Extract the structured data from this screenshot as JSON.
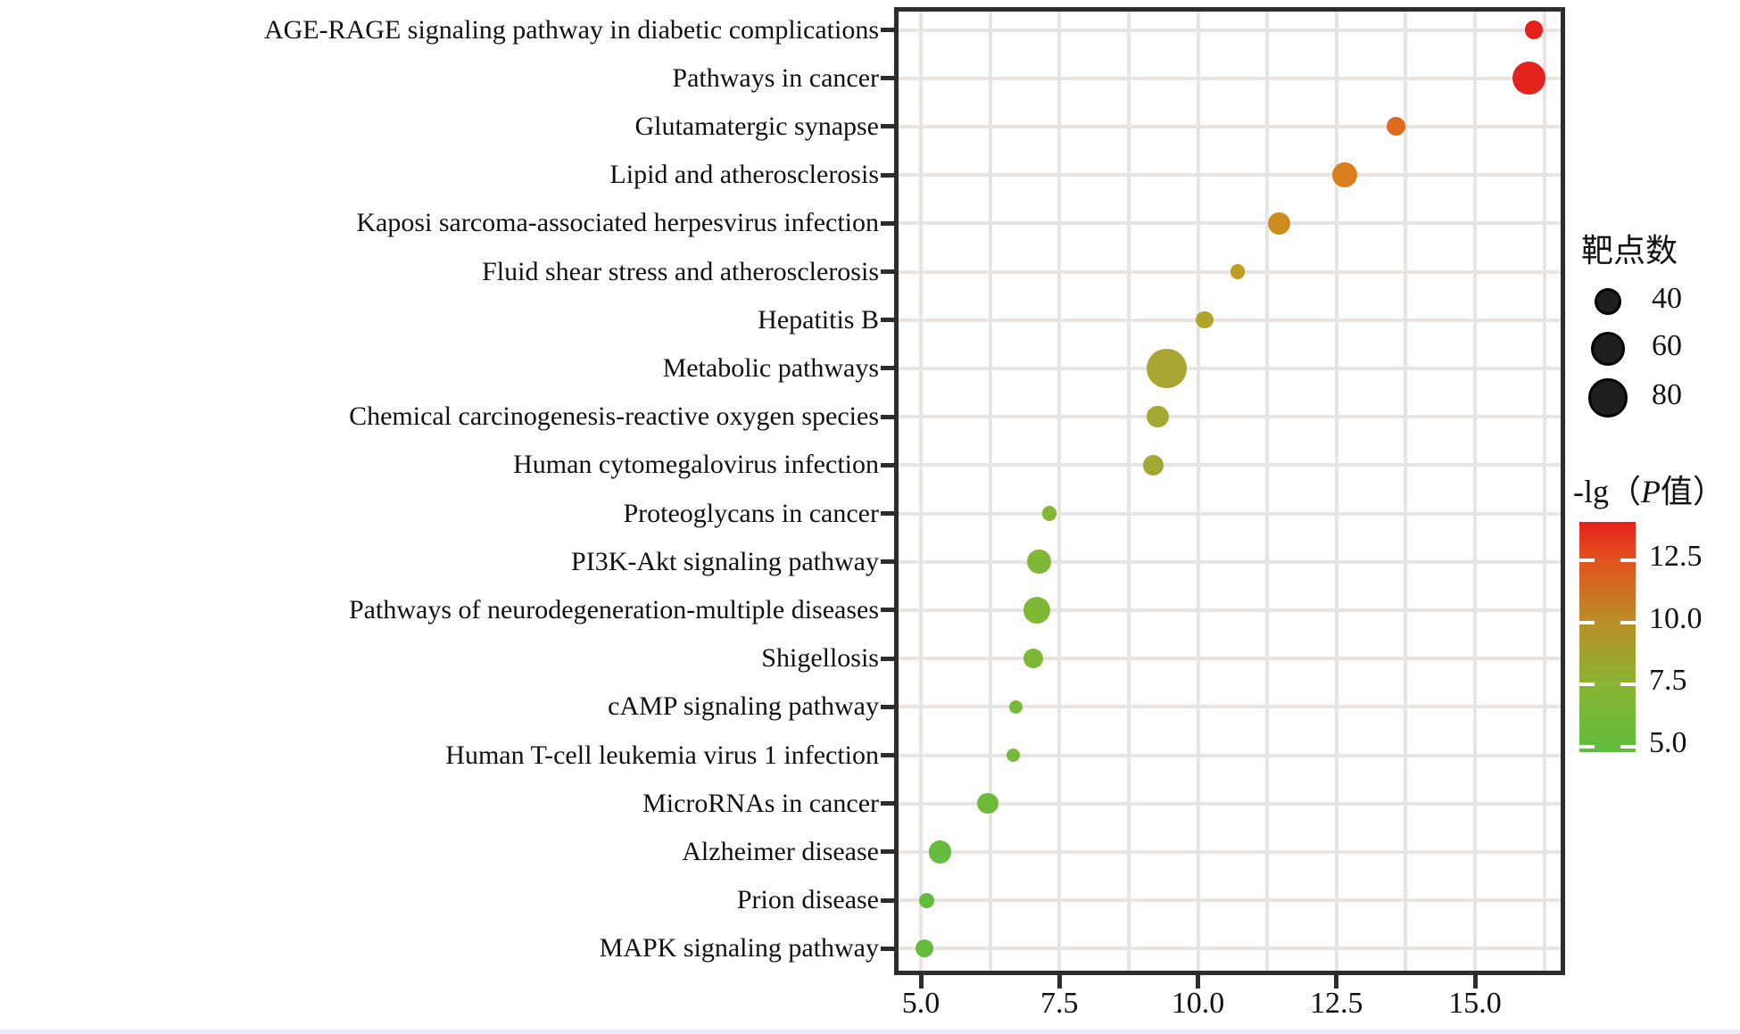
{
  "chart_data": {
    "type": "scatter",
    "title": "",
    "xlabel": "",
    "ylabel": "",
    "x_range": [
      4.5,
      16.6
    ],
    "grid": "on",
    "x_ticks": [
      {
        "v": 5.0,
        "label": "5.0"
      },
      {
        "v": 7.5,
        "label": "7.5"
      },
      {
        "v": 10.0,
        "label": "10.0"
      },
      {
        "v": 12.5,
        "label": "12.5"
      },
      {
        "v": 15.0,
        "label": "15.0"
      }
    ],
    "minor_grid_step": 1.25,
    "rows": [
      {
        "label": "AGE-RAGE signaling pathway in diabetic complications",
        "x": 16.06,
        "targets": 17,
        "color": "#e5231e"
      },
      {
        "label": "Pathways in cancer",
        "x": 15.97,
        "targets": 57,
        "color": "#e5231e"
      },
      {
        "label": "Glutamatergic synapse",
        "x": 13.58,
        "targets": 19,
        "color": "#e06a1e"
      },
      {
        "label": "Lipid and atherosclerosis",
        "x": 12.65,
        "targets": 33,
        "color": "#da7e1d"
      },
      {
        "label": "Kaposi sarcoma-associated herpesvirus infection",
        "x": 11.47,
        "targets": 27,
        "color": "#d08b1f"
      },
      {
        "label": "Fluid shear stress and atherosclerosis",
        "x": 10.72,
        "targets": 11,
        "color": "#c19b24"
      },
      {
        "label": "Hepatitis B",
        "x": 10.12,
        "targets": 16,
        "color": "#b2a42a"
      },
      {
        "label": "Metabolic pathways",
        "x": 9.44,
        "targets": 84,
        "color": "#a8a531"
      },
      {
        "label": "Chemical carcinogenesis-reactive oxygen species",
        "x": 9.27,
        "targets": 26,
        "color": "#a4a832"
      },
      {
        "label": "Human cytomegalovirus infection",
        "x": 9.19,
        "targets": 22,
        "color": "#a1a933"
      },
      {
        "label": "Proteoglycans in cancer",
        "x": 7.32,
        "targets": 12,
        "color": "#85b636"
      },
      {
        "label": "PI3K-Akt signaling pathway",
        "x": 7.13,
        "targets": 30,
        "color": "#80b737"
      },
      {
        "label": "Pathways of neurodegeneration-multiple diseases",
        "x": 7.1,
        "targets": 38,
        "color": "#7fb737"
      },
      {
        "label": "Shigellosis",
        "x": 7.03,
        "targets": 20,
        "color": "#7db838"
      },
      {
        "label": "cAMP signaling pathway",
        "x": 6.71,
        "targets": 10,
        "color": "#77b93a"
      },
      {
        "label": "Human T-cell leukemia virus 1 infection",
        "x": 6.67,
        "targets": 10,
        "color": "#76b93a"
      },
      {
        "label": "MicroRNAs in cancer",
        "x": 6.21,
        "targets": 23,
        "color": "#6ebb3c"
      },
      {
        "label": "Alzheimer disease",
        "x": 5.35,
        "targets": 27,
        "color": "#66bc3e"
      },
      {
        "label": "Prion disease",
        "x": 5.11,
        "targets": 12,
        "color": "#63bc3e"
      },
      {
        "label": "MAPK signaling pathway",
        "x": 5.06,
        "targets": 17,
        "color": "#63bc3e"
      }
    ],
    "size_legend": {
      "title": "靶点数",
      "items": [
        {
          "targets": 40,
          "label": "40"
        },
        {
          "targets": 60,
          "label": "60"
        },
        {
          "targets": 80,
          "label": "80"
        }
      ],
      "dot_color": "#1f1f1f"
    },
    "color_legend": {
      "title_prefix": "-lg（",
      "title_italic": "P",
      "title_suffix": "值）",
      "tick_labels": [
        "12.5",
        "10.0",
        "7.5",
        "5.0"
      ],
      "gradient_stops": [
        {
          "pct": 0,
          "color": "#e7211d"
        },
        {
          "pct": 16.7,
          "color": "#e1531d"
        },
        {
          "pct": 43.8,
          "color": "#b98f27"
        },
        {
          "pct": 70.5,
          "color": "#8ab434"
        },
        {
          "pct": 97.7,
          "color": "#62bc3d"
        },
        {
          "pct": 100,
          "color": "#61bc3d"
        }
      ]
    }
  }
}
